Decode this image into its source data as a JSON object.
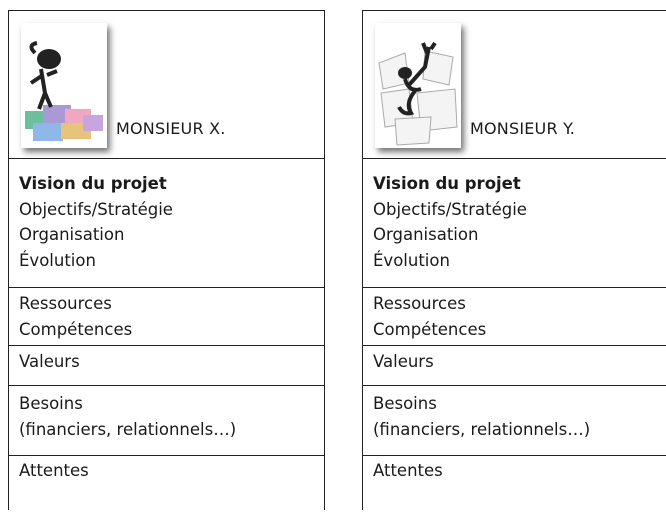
{
  "cards": [
    {
      "name": "MONSIEUR X.",
      "sections": [
        {
          "title": "Vision du projet",
          "lines": [
            "Objectifs/Stratégie",
            "Organisation",
            "Évolution"
          ]
        },
        {
          "lines": [
            "Ressources",
            "Compétences"
          ]
        },
        {
          "lines": [
            "Valeurs"
          ]
        },
        {
          "lines": [
            "Besoins",
            "(financiers, relationnels…)"
          ]
        },
        {
          "lines": [
            "Attentes"
          ]
        }
      ]
    },
    {
      "name": "MONSIEUR Y.",
      "sections": [
        {
          "title": "Vision du projet",
          "lines": [
            "Objectifs/Stratégie",
            "Organisation",
            "Évolution"
          ]
        },
        {
          "lines": [
            "Ressources",
            "Compétences"
          ]
        },
        {
          "lines": [
            "Valeurs"
          ]
        },
        {
          "lines": [
            "Besoins",
            "(financiers, relationnels…)"
          ]
        },
        {
          "lines": [
            "Attentes"
          ]
        }
      ]
    }
  ]
}
